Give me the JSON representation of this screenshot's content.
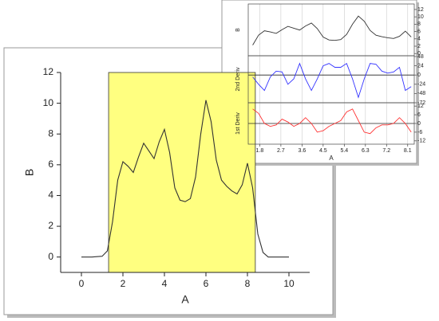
{
  "chart_data": [
    {
      "type": "line",
      "xlabel": "A",
      "ylabel": "B",
      "x": [
        0,
        0.5,
        1,
        1.25,
        1.5,
        1.75,
        2,
        2.25,
        2.5,
        2.75,
        3,
        3.25,
        3.5,
        3.75,
        4,
        4.25,
        4.5,
        4.75,
        5,
        5.25,
        5.5,
        5.75,
        6,
        6.25,
        6.5,
        6.75,
        7,
        7.25,
        7.5,
        7.75,
        8,
        8.25,
        8.5,
        8.75,
        9,
        9.5,
        10
      ],
      "values": [
        0,
        0,
        0.05,
        0.4,
        2.3,
        5.0,
        6.2,
        5.9,
        5.5,
        6.5,
        7.4,
        6.9,
        6.4,
        7.5,
        8.3,
        6.8,
        4.5,
        3.7,
        3.6,
        3.8,
        5.2,
        8.0,
        10.2,
        8.8,
        6.3,
        5.0,
        4.6,
        4.3,
        4.1,
        4.7,
        6.1,
        4.5,
        1.5,
        0.3,
        0,
        0,
        0
      ],
      "color": "#333333",
      "highlight": [
        1.31,
        8.38
      ],
      "highlight_color": "#ffff80",
      "xlim": [
        -1,
        11
      ],
      "ylim": [
        -1,
        12
      ],
      "xticks": [
        0,
        2,
        4,
        6,
        8,
        10
      ],
      "yticks": [
        0,
        2,
        4,
        6,
        8,
        10,
        12
      ]
    },
    {
      "type": "line",
      "ylabel": "B",
      "x": [
        1.5,
        1.75,
        2,
        2.25,
        2.5,
        2.75,
        3,
        3.25,
        3.5,
        3.75,
        4,
        4.25,
        4.5,
        4.75,
        5,
        5.25,
        5.5,
        5.75,
        6,
        6.25,
        6.5,
        6.75,
        7,
        7.25,
        7.5,
        7.75,
        8,
        8.25
      ],
      "values": [
        2.3,
        5.0,
        6.2,
        5.9,
        5.5,
        6.5,
        7.4,
        6.9,
        6.4,
        7.5,
        8.3,
        6.8,
        4.5,
        3.7,
        3.6,
        3.8,
        5.2,
        8.0,
        10.2,
        8.8,
        6.3,
        5.0,
        4.6,
        4.3,
        4.1,
        4.7,
        6.1,
        4.5
      ],
      "color": "#333333",
      "xlim": [
        1.31,
        8.38
      ],
      "ylim": [
        -0.6,
        13.5
      ],
      "yticks": [
        0,
        2,
        4,
        6,
        8,
        10,
        12
      ],
      "xticks": [
        1.8,
        2.7,
        3.6,
        4.5,
        5.4,
        6.3,
        7.2,
        8.1
      ],
      "grid": true
    },
    {
      "type": "line",
      "ylabel": "2nd Deriv",
      "x": [
        1.5,
        1.75,
        2,
        2.25,
        2.5,
        2.75,
        3,
        3.25,
        3.5,
        3.75,
        4,
        4.25,
        4.5,
        4.75,
        5,
        5.25,
        5.5,
        5.75,
        6,
        6.25,
        6.5,
        6.75,
        7,
        7.25,
        7.5,
        7.75,
        8,
        8.25
      ],
      "values": [
        -5,
        -24,
        -40,
        -5,
        10,
        8,
        -24,
        -10,
        30,
        -10,
        -40,
        -10,
        24,
        30,
        20,
        20,
        30,
        -10,
        -58,
        -10,
        30,
        28,
        10,
        5,
        8,
        20,
        -40,
        -30
      ],
      "color": "#3333ff",
      "xlim": [
        1.31,
        8.38
      ],
      "ylim": [
        -72,
        50
      ],
      "yticks": [
        48,
        24,
        0,
        -24,
        -48,
        -72
      ],
      "xticks": [
        1.8,
        2.7,
        3.6,
        4.5,
        5.4,
        6.3,
        7.2,
        8.1
      ],
      "grid": true,
      "zero_line": true
    },
    {
      "type": "line",
      "ylabel": "1st Deriv",
      "xlabel": "A",
      "x": [
        1.5,
        1.75,
        2,
        2.25,
        2.5,
        2.75,
        3,
        3.25,
        3.5,
        3.75,
        4,
        4.25,
        4.5,
        4.75,
        5,
        5.25,
        5.5,
        5.75,
        6,
        6.25,
        6.5,
        6.75,
        7,
        7.25,
        7.5,
        7.75,
        8,
        8.25
      ],
      "values": [
        10,
        7,
        0,
        -2,
        -1,
        3,
        1,
        -2,
        0,
        4,
        0,
        -6,
        -5,
        -2,
        0,
        2,
        8,
        10,
        2,
        -6,
        -7,
        -3,
        -1,
        -1,
        0,
        4,
        0,
        -6
      ],
      "color": "#ff3333",
      "xlim": [
        1.31,
        8.38
      ],
      "ylim": [
        -14.3,
        14.3
      ],
      "yticks": [
        12,
        6,
        0,
        -6,
        -12
      ],
      "xticks": [
        1.8,
        2.7,
        3.6,
        4.5,
        5.4,
        6.3,
        7.2,
        8.1
      ],
      "grid": true,
      "zero_line": true,
      "show_xticks": true
    }
  ]
}
